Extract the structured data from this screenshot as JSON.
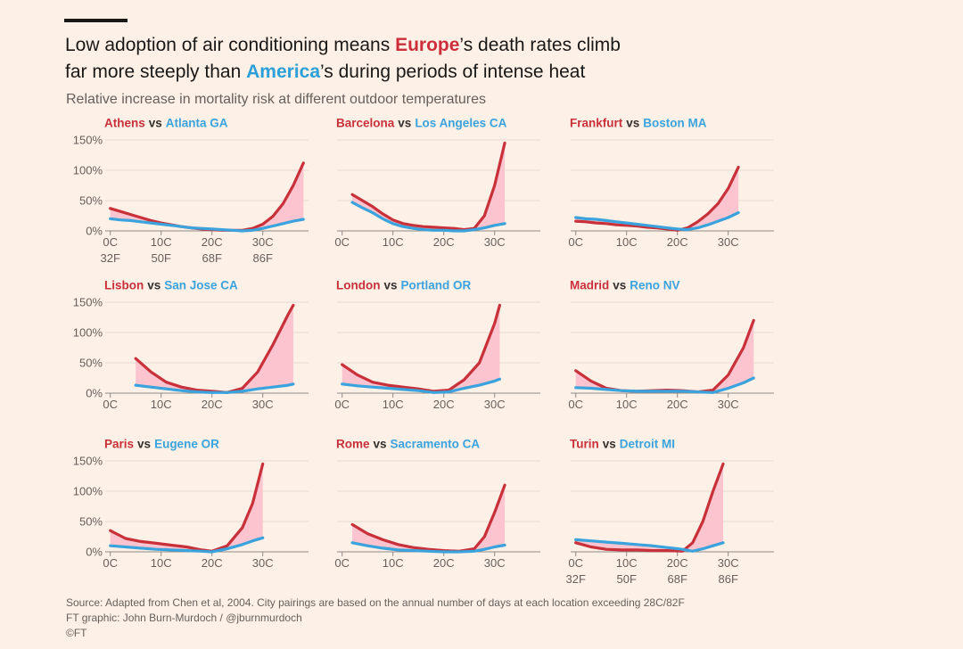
{
  "header": {
    "title_lines": [
      [
        {
          "text": "Low adoption of air conditioning means "
        },
        {
          "text": "Europe",
          "color": "#cc2f3b"
        },
        {
          "text": "’s death rates climb"
        }
      ],
      [
        {
          "text": "far more steeply than "
        },
        {
          "text": "America",
          "color": "#2a9fd8"
        },
        {
          "text": "’s during periods of intense heat"
        }
      ]
    ],
    "subtitle": "Relative increase in mortality risk at different outdoor temperatures"
  },
  "footer": {
    "source": "Source: Adapted from Chen et al, 2004. City pairings are based on the annual number of days at each location exceeding 28C/82F",
    "credit": "FT graphic: John Burn-Murdoch / @jburnmurdoch",
    "copyright": "©FT"
  },
  "chart_data": [
    {
      "type": "line",
      "versus": "vs",
      "x": [
        0,
        2,
        4,
        6,
        8,
        10,
        12,
        14,
        16,
        18,
        20,
        22,
        24,
        26,
        28,
        30,
        32,
        34,
        36,
        38
      ],
      "series": [
        {
          "name": "Athens",
          "color": "#c8303a",
          "values": [
            37,
            32,
            27,
            22,
            17,
            13,
            10,
            7,
            5,
            3,
            2,
            1,
            1,
            1,
            4,
            11,
            24,
            45,
            75,
            112
          ]
        },
        {
          "name": "Atlanta GA",
          "color": "#3aa3dd",
          "values": [
            20,
            18,
            17,
            15,
            13,
            11,
            9,
            7,
            5,
            4,
            3,
            2,
            1,
            0,
            1,
            4,
            8,
            12,
            16,
            19
          ]
        }
      ],
      "xlim": [
        -1,
        39
      ],
      "ylim": [
        -3,
        155
      ],
      "xticks": [
        {
          "value": 0,
          "label": "0C"
        },
        {
          "value": 10,
          "label": "10C"
        },
        {
          "value": 20,
          "label": "20C"
        },
        {
          "value": 30,
          "label": "30C"
        }
      ],
      "xticks2": [
        {
          "value": 0,
          "label": "32F"
        },
        {
          "value": 10,
          "label": "50F"
        },
        {
          "value": 20,
          "label": "68F"
        },
        {
          "value": 30,
          "label": "86F"
        }
      ],
      "yticks": [
        {
          "value": 0,
          "label": "0%"
        },
        {
          "value": 50,
          "label": "50%"
        },
        {
          "value": 100,
          "label": "100%"
        },
        {
          "value": 150,
          "label": "150%"
        }
      ]
    },
    {
      "type": "line",
      "versus": "vs",
      "x": [
        2,
        4,
        6,
        8,
        10,
        12,
        14,
        16,
        18,
        20,
        22,
        24,
        26,
        28,
        30,
        32
      ],
      "series": [
        {
          "name": "Barcelona",
          "color": "#c8303a",
          "values": [
            60,
            50,
            40,
            28,
            18,
            12,
            9,
            7,
            6,
            5,
            4,
            2,
            4,
            25,
            75,
            145
          ]
        },
        {
          "name": "Los Angeles CA",
          "color": "#3aa3dd",
          "values": [
            47,
            38,
            30,
            20,
            12,
            7,
            4,
            2,
            1,
            1,
            0,
            0,
            2,
            5,
            9,
            12
          ]
        }
      ],
      "xlim": [
        -1,
        39
      ],
      "ylim": [
        -3,
        155
      ],
      "xticks": [
        {
          "value": 0,
          "label": "0C"
        },
        {
          "value": 10,
          "label": "10C"
        },
        {
          "value": 20,
          "label": "20C"
        },
        {
          "value": 30,
          "label": "30C"
        }
      ],
      "yticks": [
        0,
        50,
        100,
        150
      ]
    },
    {
      "type": "line",
      "versus": "vs",
      "x": [
        0,
        2,
        4,
        6,
        8,
        10,
        12,
        14,
        16,
        18,
        20,
        22,
        24,
        26,
        28,
        30,
        32
      ],
      "series": [
        {
          "name": "Frankfurt",
          "color": "#c8303a",
          "values": [
            16,
            15,
            13,
            12,
            10,
            9,
            8,
            6,
            5,
            3,
            1,
            5,
            15,
            28,
            45,
            70,
            105
          ]
        },
        {
          "name": "Boston MA",
          "color": "#3aa3dd",
          "values": [
            22,
            20,
            19,
            17,
            15,
            13,
            11,
            9,
            7,
            5,
            3,
            2,
            5,
            10,
            16,
            22,
            30
          ]
        }
      ],
      "xlim": [
        -1,
        39
      ],
      "ylim": [
        -3,
        155
      ],
      "xticks": [
        {
          "value": 0,
          "label": "0C"
        },
        {
          "value": 10,
          "label": "10C"
        },
        {
          "value": 20,
          "label": "20C"
        },
        {
          "value": 30,
          "label": "30C"
        }
      ],
      "yticks": [
        0,
        50,
        100,
        150
      ]
    },
    {
      "type": "line",
      "versus": "vs",
      "x": [
        5,
        8,
        11,
        14,
        17,
        20,
        23,
        26,
        29,
        32,
        35,
        36
      ],
      "series": [
        {
          "name": "Lisbon",
          "color": "#c8303a",
          "values": [
            57,
            35,
            18,
            10,
            5,
            3,
            1,
            8,
            35,
            80,
            130,
            145
          ]
        },
        {
          "name": "San Jose CA",
          "color": "#3aa3dd",
          "values": [
            13,
            10,
            7,
            4,
            2,
            1,
            1,
            3,
            7,
            10,
            13,
            15
          ]
        }
      ],
      "xlim": [
        -1,
        39
      ],
      "ylim": [
        -3,
        155
      ],
      "xticks": [
        {
          "value": 0,
          "label": "0C"
        },
        {
          "value": 10,
          "label": "10C"
        },
        {
          "value": 20,
          "label": "20C"
        },
        {
          "value": 30,
          "label": "30C"
        }
      ],
      "yticks": [
        {
          "value": 0,
          "label": "0%"
        },
        {
          "value": 50,
          "label": "50%"
        },
        {
          "value": 100,
          "label": "100%"
        },
        {
          "value": 150,
          "label": "150%"
        }
      ]
    },
    {
      "type": "line",
      "versus": "vs",
      "x": [
        0,
        3,
        6,
        9,
        12,
        15,
        18,
        21,
        24,
        27,
        30,
        31
      ],
      "series": [
        {
          "name": "London",
          "color": "#c8303a",
          "values": [
            47,
            30,
            18,
            13,
            10,
            7,
            3,
            5,
            22,
            50,
            115,
            145
          ]
        },
        {
          "name": "Portland OR",
          "color": "#3aa3dd",
          "values": [
            15,
            12,
            10,
            8,
            6,
            4,
            1,
            2,
            8,
            13,
            20,
            23
          ]
        }
      ],
      "xlim": [
        -1,
        39
      ],
      "ylim": [
        -3,
        155
      ],
      "xticks": [
        {
          "value": 0,
          "label": "0C"
        },
        {
          "value": 10,
          "label": "10C"
        },
        {
          "value": 20,
          "label": "20C"
        },
        {
          "value": 30,
          "label": "30C"
        }
      ],
      "yticks": [
        0,
        50,
        100,
        150
      ]
    },
    {
      "type": "line",
      "versus": "vs",
      "x": [
        0,
        3,
        6,
        9,
        12,
        15,
        18,
        21,
        24,
        27,
        30,
        33,
        35
      ],
      "series": [
        {
          "name": "Madrid",
          "color": "#c8303a",
          "values": [
            37,
            20,
            8,
            4,
            3,
            4,
            5,
            4,
            2,
            5,
            30,
            75,
            120
          ]
        },
        {
          "name": "Reno NV",
          "color": "#3aa3dd",
          "values": [
            9,
            8,
            6,
            4,
            3,
            3,
            3,
            3,
            2,
            1,
            8,
            17,
            25
          ]
        }
      ],
      "xlim": [
        -1,
        39
      ],
      "ylim": [
        -3,
        155
      ],
      "xticks": [
        {
          "value": 0,
          "label": "0C"
        },
        {
          "value": 10,
          "label": "10C"
        },
        {
          "value": 20,
          "label": "20C"
        },
        {
          "value": 30,
          "label": "30C"
        }
      ],
      "yticks": [
        0,
        50,
        100,
        150
      ]
    },
    {
      "type": "line",
      "versus": "vs",
      "x": [
        0,
        3,
        6,
        9,
        12,
        15,
        18,
        20,
        23,
        26,
        28,
        30
      ],
      "series": [
        {
          "name": "Paris",
          "color": "#c8303a",
          "values": [
            35,
            22,
            17,
            14,
            11,
            8,
            3,
            1,
            10,
            40,
            80,
            145
          ]
        },
        {
          "name": "Eugene OR",
          "color": "#3aa3dd",
          "values": [
            10,
            8,
            6,
            4,
            3,
            2,
            1,
            0,
            5,
            12,
            18,
            23
          ]
        }
      ],
      "xlim": [
        -1,
        39
      ],
      "ylim": [
        -3,
        155
      ],
      "xticks": [
        {
          "value": 0,
          "label": "0C"
        },
        {
          "value": 10,
          "label": "10C"
        },
        {
          "value": 20,
          "label": "20C"
        },
        {
          "value": 30,
          "label": "30C"
        }
      ],
      "yticks": [
        {
          "value": 0,
          "label": "0%"
        },
        {
          "value": 50,
          "label": "50%"
        },
        {
          "value": 100,
          "label": "100%"
        },
        {
          "value": 150,
          "label": "150%"
        }
      ]
    },
    {
      "type": "line",
      "versus": "vs",
      "x": [
        2,
        5,
        8,
        11,
        14,
        17,
        20,
        23,
        26,
        28,
        30,
        32
      ],
      "series": [
        {
          "name": "Rome",
          "color": "#c8303a",
          "values": [
            45,
            30,
            20,
            12,
            7,
            4,
            2,
            1,
            5,
            25,
            65,
            110
          ]
        },
        {
          "name": "Sacramento CA",
          "color": "#3aa3dd",
          "values": [
            15,
            10,
            6,
            3,
            2,
            1,
            0,
            0,
            1,
            4,
            8,
            11
          ]
        }
      ],
      "xlim": [
        -1,
        39
      ],
      "ylim": [
        -3,
        155
      ],
      "xticks": [
        {
          "value": 0,
          "label": "0C"
        },
        {
          "value": 10,
          "label": "10C"
        },
        {
          "value": 20,
          "label": "20C"
        },
        {
          "value": 30,
          "label": "30C"
        }
      ],
      "yticks": [
        0,
        50,
        100,
        150
      ]
    },
    {
      "type": "line",
      "versus": "vs",
      "x": [
        0,
        3,
        6,
        9,
        12,
        15,
        18,
        21,
        23,
        25,
        27,
        29
      ],
      "series": [
        {
          "name": "Turin",
          "color": "#c8303a",
          "values": [
            15,
            8,
            4,
            3,
            3,
            2,
            2,
            1,
            15,
            50,
            100,
            145
          ]
        },
        {
          "name": "Detroit MI",
          "color": "#3aa3dd",
          "values": [
            20,
            18,
            16,
            14,
            12,
            10,
            7,
            4,
            1,
            5,
            10,
            15
          ]
        }
      ],
      "xlim": [
        -1,
        39
      ],
      "ylim": [
        -3,
        155
      ],
      "xticks": [
        {
          "value": 0,
          "label": "0C"
        },
        {
          "value": 10,
          "label": "10C"
        },
        {
          "value": 20,
          "label": "20C"
        },
        {
          "value": 30,
          "label": "30C"
        }
      ],
      "xticks2": [
        {
          "value": 0,
          "label": "32F"
        },
        {
          "value": 10,
          "label": "50F"
        },
        {
          "value": 20,
          "label": "68F"
        },
        {
          "value": 30,
          "label": "86F"
        }
      ],
      "yticks": [
        0,
        50,
        100,
        150
      ]
    }
  ]
}
